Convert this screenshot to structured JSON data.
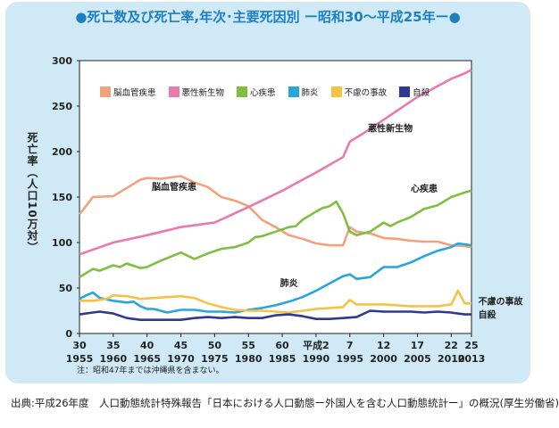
{
  "title": "●死亡数及び死亡率,年次･主要死因別 ー昭和30～平成25年ー●",
  "note": "注：昭和47年までは沖縄県を含まない。",
  "source": "出典:平成26年度　人口動態統計特殊報告「日本における人口動態ー外国人を含む人口動態統計ー」の概況(厚生労働省)",
  "chart_data": {
    "type": "line",
    "ylabel": "死亡率（人口10万対）",
    "ylim": [
      0,
      300
    ],
    "yticks": [
      0,
      50,
      100,
      150,
      200,
      250,
      300
    ],
    "xlim": [
      1955,
      2013
    ],
    "xticks": [
      {
        "year": 1955,
        "era": "30",
        "ad": "1955"
      },
      {
        "year": 1960,
        "era": "35",
        "ad": "1960"
      },
      {
        "year": 1965,
        "era": "40",
        "ad": "1965"
      },
      {
        "year": 1970,
        "era": "45",
        "ad": "1970"
      },
      {
        "year": 1975,
        "era": "50",
        "ad": "1975"
      },
      {
        "year": 1980,
        "era": "55",
        "ad": "1980"
      },
      {
        "year": 1985,
        "era": "60",
        "ad": "1985"
      },
      {
        "year": 1990,
        "era": "平成2",
        "ad": "1990"
      },
      {
        "year": 1995,
        "era": "7",
        "ad": "1995"
      },
      {
        "year": 2000,
        "era": "12",
        "ad": "2000"
      },
      {
        "year": 2005,
        "era": "17",
        "ad": "2005"
      },
      {
        "year": 2010,
        "era": "22",
        "ad": "2010"
      },
      {
        "year": 2013,
        "era": "25",
        "ad": "2013"
      }
    ],
    "series": [
      {
        "name": "脳血管疾患",
        "color": "#f2a27a",
        "x": [
          1955,
          1957,
          1960,
          1962,
          1964,
          1965,
          1967,
          1970,
          1972,
          1974,
          1976,
          1978,
          1980,
          1982,
          1984,
          1986,
          1988,
          1990,
          1992,
          1994,
          1995,
          1996,
          1998,
          2000,
          2002,
          2004,
          2006,
          2008,
          2010,
          2012,
          2013
        ],
        "y": [
          131,
          150,
          151,
          160,
          169,
          171,
          170,
          173,
          166,
          161,
          150,
          146,
          140,
          125,
          117,
          108,
          104,
          99,
          97,
          97,
          117,
          112,
          110,
          105,
          104,
          102,
          101,
          101,
          97,
          96,
          95
        ]
      },
      {
        "name": "悪性新生物",
        "color": "#e97ab0",
        "x": [
          1955,
          1960,
          1965,
          1970,
          1975,
          1980,
          1985,
          1990,
          1994,
          1995,
          1997,
          2000,
          2005,
          2010,
          2012,
          2013
        ],
        "y": [
          87,
          100,
          108,
          117,
          122,
          139,
          157,
          177,
          194,
          211,
          220,
          235,
          260,
          280,
          286,
          290
        ]
      },
      {
        "name": "心疾患",
        "color": "#7fbf3f",
        "x": [
          1955,
          1957,
          1958,
          1960,
          1961,
          1962,
          1964,
          1965,
          1967,
          1969,
          1970,
          1972,
          1974,
          1976,
          1978,
          1980,
          1981,
          1982,
          1984,
          1986,
          1987,
          1988,
          1990,
          1991,
          1992,
          1993,
          1994,
          1995,
          1996,
          1998,
          2000,
          2001,
          2002,
          2004,
          2006,
          2008,
          2010,
          2012,
          2013
        ],
        "y": [
          62,
          71,
          69,
          75,
          73,
          77,
          72,
          73,
          80,
          86,
          89,
          82,
          88,
          93,
          95,
          100,
          106,
          107,
          112,
          117,
          118,
          125,
          134,
          138,
          140,
          145,
          132,
          112,
          108,
          112,
          122,
          118,
          122,
          128,
          137,
          141,
          150,
          155,
          157
        ]
      },
      {
        "name": "肺炎",
        "color": "#27a5dd",
        "x": [
          1955,
          1956,
          1957,
          1958,
          1960,
          1962,
          1963,
          1964,
          1965,
          1966,
          1968,
          1970,
          1972,
          1974,
          1976,
          1978,
          1980,
          1982,
          1984,
          1986,
          1988,
          1990,
          1992,
          1994,
          1995,
          1996,
          1998,
          2000,
          2002,
          2004,
          2006,
          2008,
          2010,
          2011,
          2012,
          2013
        ],
        "y": [
          38,
          42,
          45,
          39,
          36,
          34,
          35,
          30,
          27,
          27,
          23,
          26,
          26,
          24,
          24,
          23,
          26,
          28,
          31,
          35,
          40,
          47,
          55,
          63,
          65,
          60,
          62,
          73,
          73,
          78,
          85,
          91,
          95,
          99,
          98,
          97
        ]
      },
      {
        "name": "不慮の事故",
        "color": "#f6c244",
        "x": [
          1955,
          1957,
          1959,
          1960,
          1962,
          1964,
          1966,
          1968,
          1970,
          1972,
          1974,
          1976,
          1978,
          1980,
          1982,
          1984,
          1986,
          1988,
          1990,
          1992,
          1994,
          1995,
          1996,
          1998,
          2000,
          2002,
          2004,
          2006,
          2008,
          2010,
          2011,
          2012,
          2013
        ],
        "y": [
          36,
          36,
          38,
          42,
          41,
          38,
          39,
          40,
          41,
          39,
          33,
          29,
          26,
          25,
          25,
          24,
          23,
          25,
          27,
          28,
          29,
          37,
          32,
          32,
          32,
          31,
          30,
          30,
          30,
          32,
          47,
          33,
          33
        ]
      },
      {
        "name": "自殺",
        "color": "#2f3893",
        "x": [
          1955,
          1957,
          1958,
          1960,
          1962,
          1964,
          1966,
          1968,
          1970,
          1972,
          1974,
          1976,
          1978,
          1980,
          1982,
          1984,
          1986,
          1988,
          1990,
          1992,
          1994,
          1996,
          1998,
          2000,
          2002,
          2004,
          2006,
          2008,
          2010,
          2012,
          2013
        ],
        "y": [
          21,
          23,
          24,
          22,
          17,
          15,
          15,
          15,
          15,
          17,
          18,
          17,
          18,
          17,
          17,
          20,
          21,
          19,
          16,
          16,
          17,
          18,
          25,
          24,
          24,
          24,
          23,
          24,
          23,
          21,
          21
        ]
      }
    ],
    "annotations": [
      {
        "text": "悪性新生物",
        "series": 1
      },
      {
        "text": "脳血管疾患",
        "series": 0
      },
      {
        "text": "心疾患",
        "series": 2
      },
      {
        "text": "肺炎",
        "series": 3
      },
      {
        "text": "不慮の事故",
        "series": 4
      },
      {
        "text": "自殺",
        "series": 5
      }
    ]
  }
}
